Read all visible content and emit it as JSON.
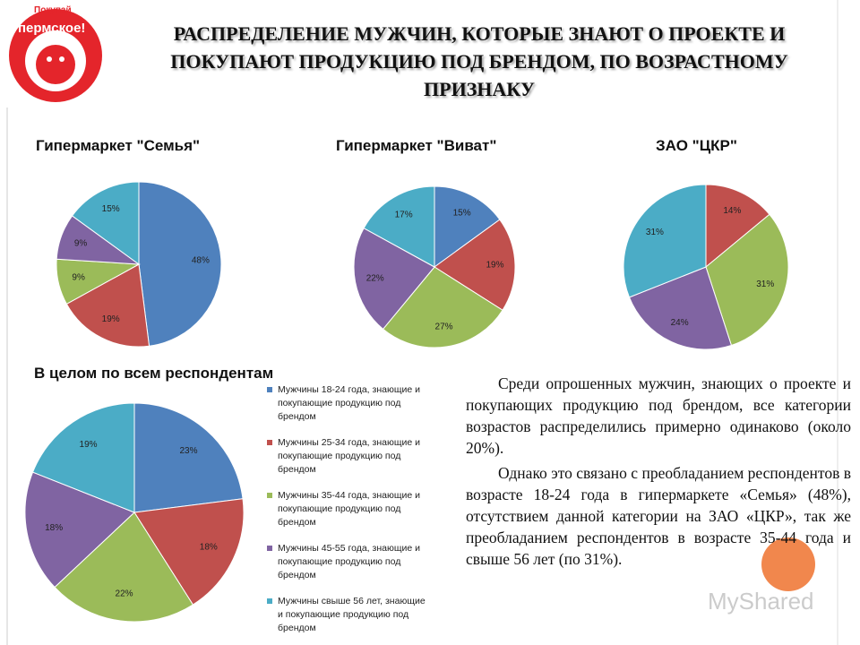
{
  "logo": {
    "top": "Покупай",
    "main": "пермское!"
  },
  "title": "РАСПРЕДЕЛЕНИЕ МУЖЧИН, КОТОРЫЕ ЗНАЮТ О ПРОЕКТЕ И ПОКУПАЮТ ПРОДУКЦИЮ ПОД БРЕНДОМ, ПО ВОЗРАСТНОМУ ПРИЗНАКУ",
  "chart_data": [
    {
      "type": "pie",
      "title": "Гипермаркет \"Семья\"",
      "values": [
        48,
        19,
        9,
        9,
        15
      ],
      "value_labels": [
        "48%",
        "19%",
        "9%",
        "9%",
        "15%"
      ],
      "colors": [
        "#4f81bd",
        "#c0504d",
        "#9bbb59",
        "#8064a2",
        "#4bacc6"
      ]
    },
    {
      "type": "pie",
      "title": "Гипермаркет \"Виват\"",
      "values": [
        15,
        19,
        27,
        22,
        17
      ],
      "value_labels": [
        "15%",
        "19%",
        "27%",
        "22%",
        "17%"
      ],
      "colors": [
        "#4f81bd",
        "#c0504d",
        "#9bbb59",
        "#8064a2",
        "#4bacc6"
      ]
    },
    {
      "type": "pie",
      "title": "ЗАО \"ЦКР\"",
      "values": [
        14,
        31,
        24,
        31
      ],
      "value_labels": [
        "14%",
        "31%",
        "24%",
        "31%"
      ],
      "colors": [
        "#c0504d",
        "#9bbb59",
        "#8064a2",
        "#4bacc6"
      ]
    },
    {
      "type": "pie",
      "title": "В целом по всем респондентам",
      "categories": [
        "Мужчины 18-24 года, знающие и покупающие продукцию под брендом",
        "Мужчины 25-34 года, знающие и покупающие продукцию под брендом",
        "Мужчины 35-44 года, знающие и покупающие продукцию под брендом",
        "Мужчины 45-55 года, знающие и покупающие продукцию под брендом",
        "Мужчины свыше 56 лет, знающие и покупающие продукцию под брендом"
      ],
      "values": [
        23,
        18,
        22,
        18,
        19
      ],
      "value_labels": [
        "23%",
        "18%",
        "22%",
        "18%",
        "19%"
      ],
      "colors": [
        "#4f81bd",
        "#c0504d",
        "#9bbb59",
        "#8064a2",
        "#4bacc6"
      ]
    }
  ],
  "paragraphs": [
    "Среди опрошенных мужчин, знающих о проекте и покупающих продукцию под брендом, все категории возрастов распределились примерно одинаково (около 20%).",
    "Однако это связано с преобладанием респондентов в возрасте 18-24 года в гипермаркете «Семья» (48%), отсутствием данной категории на ЗАО «ЦКР», так же преобладанием респондентов в возрасте 35-44 года и свыше 56 лет (по 31%)."
  ],
  "watermark": "MyShared"
}
